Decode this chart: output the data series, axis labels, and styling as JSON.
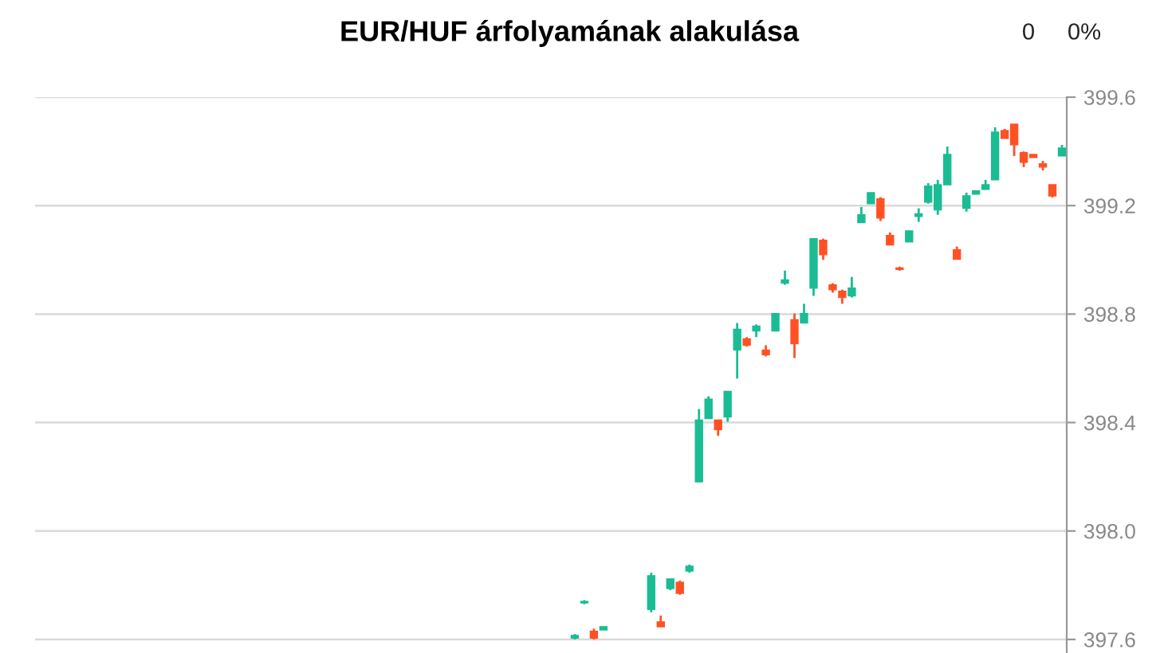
{
  "chart_data": {
    "type": "candlestick",
    "title": "EUR/HUF árfolyamának alakulása",
    "annotations": [
      "0",
      "0%"
    ],
    "colors": [
      null,
      null,
      null,
      null,
      null,
      null,
      null,
      null,
      null,
      null,
      null,
      null,
      null,
      null,
      null,
      null,
      null,
      null,
      null,
      null,
      null,
      null,
      null,
      null,
      null,
      null,
      null,
      null,
      null,
      null,
      null,
      null,
      null,
      null,
      null,
      null,
      null,
      null,
      null,
      null,
      null,
      null,
      null,
      null,
      null,
      null,
      null,
      null,
      null,
      null,
      null,
      null,
      null,
      null,
      null,
      null,
      "#1abc94",
      "#1abc94",
      "#ff5124",
      "#1abc94",
      null,
      null,
      null,
      null,
      "#1abc94",
      "#ff5124",
      "#1abc94",
      "#ff5124",
      "#1abc94",
      "#1abc94",
      "#1abc94",
      "#ff5124",
      "#1abc94",
      "#1abc94",
      "#ff5124",
      "#1abc94",
      "#ff5124",
      "#1abc94",
      "#1abc94",
      "#ff5124",
      "#1abc94",
      "#1abc94",
      "#ff5124",
      "#ff5124",
      "#ff5124",
      "#1abc94",
      "#1abc94",
      "#1abc94",
      "#ff5124",
      "#ff5124",
      "#ff5124",
      "#1abc94",
      "#1abc94",
      "#1abc94",
      "#1abc94",
      "#1abc94",
      "#ff5124",
      "#1abc94",
      "#1abc94",
      "#1abc94",
      "#1abc94",
      "#ff5124",
      "#ff5124",
      "#ff5124",
      "#ff5124",
      "#ff5124",
      "#ff5124",
      "#1abc94"
    ],
    "ylim": [
      397.55,
      399.6
    ],
    "yticks": [
      397.6,
      {
        "value": 398.0,
        "label": "398.0"
      },
      398.4,
      398.8,
      399.2,
      399.6
    ],
    "grid": "y",
    "tick_labels": "y",
    "categories": [
      null,
      null,
      null,
      null,
      null,
      null,
      null,
      null,
      null,
      null,
      null,
      null,
      null,
      null,
      null,
      null,
      null,
      null,
      null,
      null,
      null,
      null,
      null,
      null,
      null,
      null,
      null,
      null,
      null,
      null,
      null,
      null,
      null,
      null,
      null,
      null,
      null,
      null,
      null,
      null,
      null,
      null,
      null,
      null,
      null,
      null,
      null,
      null,
      null,
      null,
      null,
      null,
      null,
      null,
      null,
      null,
      null,
      null,
      null,
      null,
      null,
      null,
      null,
      null,
      null,
      null,
      null,
      null,
      null,
      null,
      null,
      null,
      null,
      null,
      null,
      null,
      null,
      null,
      null,
      null,
      null,
      null,
      null,
      null,
      null,
      null,
      null,
      null,
      null,
      null,
      null,
      null,
      null,
      null,
      null,
      null,
      null,
      null,
      null,
      null,
      null,
      null,
      null,
      null,
      null,
      null,
      null,
      null
    ],
    "ohlc": [
      null,
      null,
      null,
      null,
      null,
      null,
      null,
      null,
      null,
      null,
      null,
      null,
      null,
      null,
      null,
      null,
      null,
      null,
      null,
      null,
      null,
      null,
      null,
      null,
      null,
      null,
      null,
      null,
      null,
      null,
      null,
      null,
      null,
      null,
      null,
      null,
      null,
      null,
      null,
      null,
      null,
      null,
      null,
      null,
      null,
      null,
      null,
      null,
      null,
      null,
      null,
      null,
      null,
      null,
      null,
      null,
      [
        397.605,
        397.62,
        397.6,
        397.615
      ],
      [
        397.735,
        397.745,
        397.73,
        397.74
      ],
      [
        397.63,
        397.64,
        397.6,
        397.605
      ],
      [
        397.635,
        397.647,
        397.635,
        397.647
      ],
      null,
      null,
      null,
      null,
      [
        397.711,
        397.846,
        397.7,
        397.835
      ],
      [
        397.665,
        397.688,
        397.647,
        397.647
      ],
      [
        397.788,
        397.823,
        397.782,
        397.823
      ],
      [
        397.811,
        397.817,
        397.765,
        397.77
      ],
      [
        397.852,
        397.876,
        397.846,
        397.87
      ],
      [
        398.181,
        398.45,
        398.181,
        398.409
      ],
      [
        398.415,
        398.497,
        398.415,
        398.486
      ],
      [
        398.409,
        398.409,
        398.351,
        398.374
      ],
      [
        398.421,
        398.515,
        398.403,
        398.515
      ],
      [
        398.667,
        398.767,
        398.562,
        398.744
      ],
      [
        398.709,
        398.715,
        398.68,
        398.685
      ],
      [
        398.738,
        398.762,
        398.715,
        398.756
      ],
      [
        398.667,
        398.685,
        398.644,
        398.65
      ],
      [
        398.738,
        398.802,
        398.738,
        398.802
      ],
      [
        398.914,
        398.96,
        398.908,
        398.926
      ],
      [
        398.779,
        398.802,
        398.638,
        398.691
      ],
      [
        398.767,
        398.838,
        398.767,
        398.802
      ],
      [
        398.896,
        399.078,
        398.867,
        399.078
      ],
      [
        399.072,
        399.078,
        399.0,
        399.019
      ],
      [
        398.908,
        398.914,
        398.879,
        398.89
      ],
      [
        398.884,
        398.89,
        398.838,
        398.861
      ],
      [
        398.867,
        398.937,
        398.861,
        398.896
      ],
      [
        399.137,
        399.195,
        399.137,
        399.166
      ],
      [
        399.207,
        399.248,
        399.207,
        399.248
      ],
      [
        399.225,
        399.231,
        399.143,
        399.154
      ],
      [
        399.09,
        399.101,
        399.055,
        399.055
      ],
      [
        398.97,
        398.975,
        398.96,
        398.965
      ],
      [
        399.066,
        399.107,
        399.066,
        399.107
      ],
      [
        399.16,
        399.19,
        399.14,
        399.17
      ],
      [
        399.213,
        399.283,
        399.207,
        399.272
      ],
      [
        399.184,
        399.295,
        399.166,
        399.277
      ],
      [
        399.277,
        399.418,
        399.277,
        399.389
      ],
      [
        399.037,
        399.049,
        399.002,
        399.002
      ],
      [
        399.19,
        399.248,
        399.178,
        399.236
      ],
      [
        399.242,
        399.254,
        399.242,
        399.254
      ],
      [
        399.26,
        399.295,
        399.26,
        399.277
      ],
      [
        399.295,
        399.489,
        399.295,
        399.471
      ],
      [
        399.477,
        399.483,
        399.448,
        399.448
      ],
      [
        399.5,
        399.5,
        399.383,
        399.424
      ],
      [
        399.395,
        399.4,
        399.342,
        399.36
      ],
      [
        399.389,
        399.389,
        399.377,
        399.377
      ],
      [
        399.354,
        399.365,
        399.33,
        399.342
      ],
      [
        399.277,
        399.277,
        399.23,
        399.236
      ],
      [
        399.383,
        399.424,
        399.383,
        399.412
      ]
    ]
  }
}
